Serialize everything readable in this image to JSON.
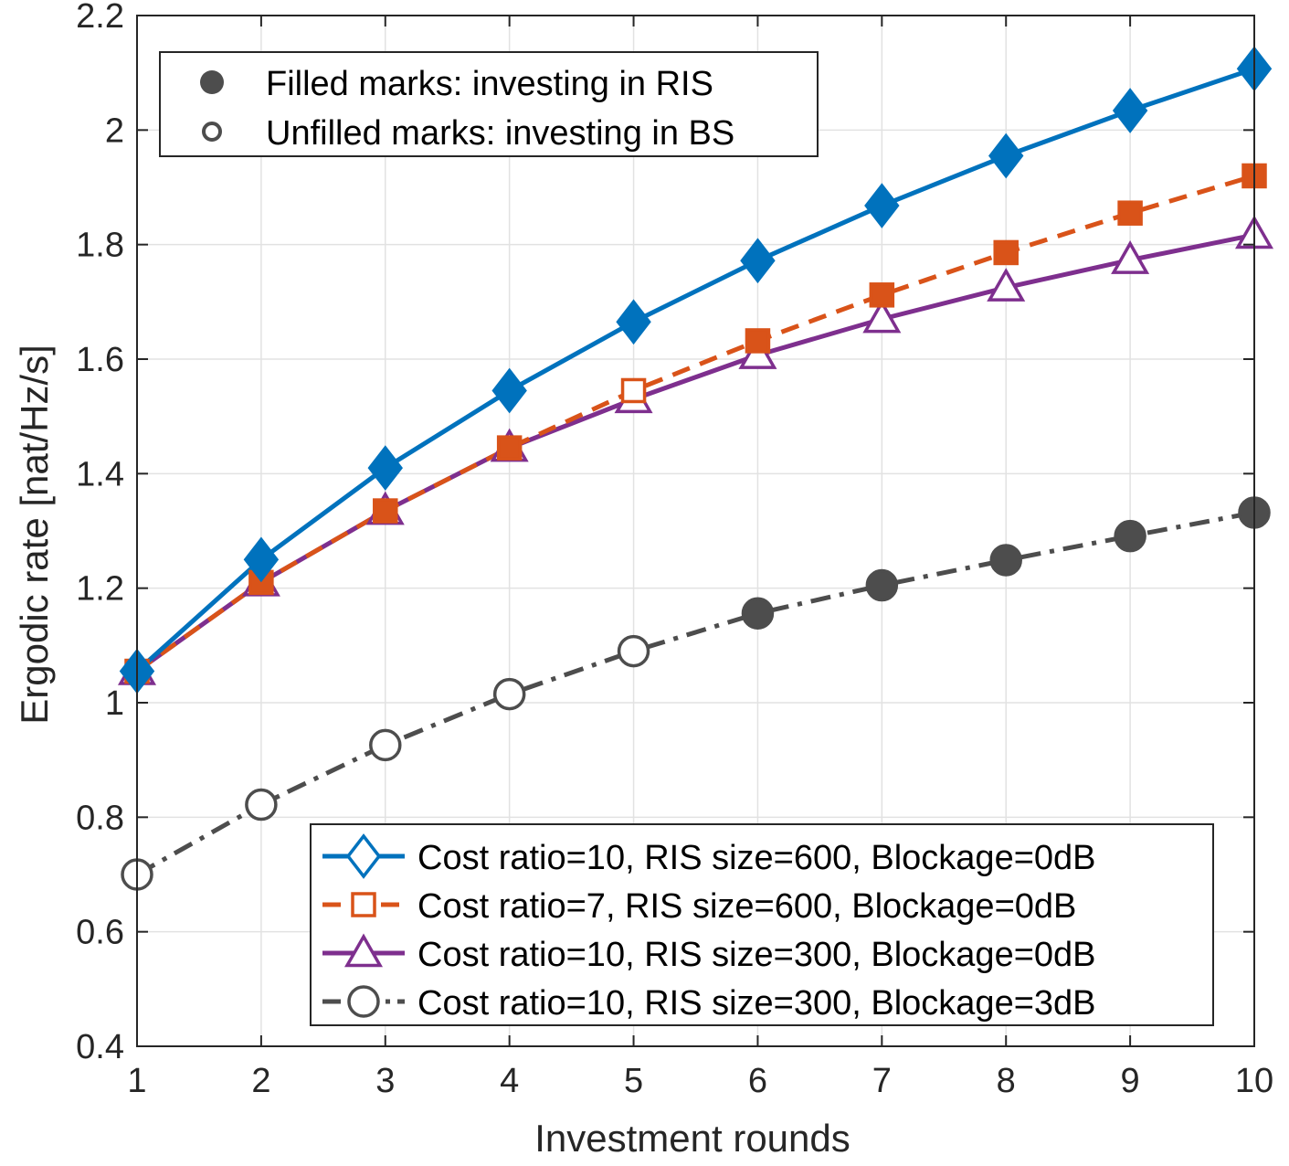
{
  "chart_data": {
    "type": "line",
    "title": "",
    "xlabel": "Investment rounds",
    "ylabel": "Ergodic rate [nat/Hz/s]",
    "xlim": [
      1,
      10
    ],
    "ylim": [
      0.4,
      2.2
    ],
    "grid": true,
    "x": [
      1,
      2,
      3,
      4,
      5,
      6,
      7,
      8,
      9,
      10
    ],
    "x_ticks": [
      "1",
      "2",
      "3",
      "4",
      "5",
      "6",
      "7",
      "8",
      "9",
      "10"
    ],
    "y_ticks": [
      {
        "v": 0.4,
        "label": "0.4"
      },
      {
        "v": 0.6,
        "label": "0.6"
      },
      {
        "v": 0.8,
        "label": "0.8"
      },
      {
        "v": 1.0,
        "label": "1"
      },
      {
        "v": 1.2,
        "label": "1.2"
      },
      {
        "v": 1.4,
        "label": "1.4"
      },
      {
        "v": 1.6,
        "label": "1.6"
      },
      {
        "v": 1.8,
        "label": "1.8"
      },
      {
        "v": 2.0,
        "label": "2"
      },
      {
        "v": 2.2,
        "label": "2.2"
      }
    ],
    "series": [
      {
        "name": "Cost ratio=10, RIS size=600, Blockage=0dB",
        "color": "#0072BD",
        "marker": "diamond",
        "linestyle": "solid",
        "values": [
          1.055,
          1.25,
          1.41,
          1.545,
          1.665,
          1.772,
          1.868,
          1.955,
          2.034,
          2.107
        ],
        "filled": [
          true,
          true,
          true,
          true,
          true,
          true,
          true,
          true,
          true,
          true
        ]
      },
      {
        "name": "Cost ratio=7, RIS size=600, Blockage=0dB",
        "color": "#D95319",
        "marker": "square",
        "linestyle": "dashed",
        "values": [
          1.055,
          1.21,
          1.335,
          1.445,
          1.545,
          1.632,
          1.712,
          1.786,
          1.855,
          1.92
        ],
        "filled": [
          true,
          true,
          true,
          true,
          false,
          true,
          true,
          true,
          true,
          true
        ]
      },
      {
        "name": "Cost ratio=10, RIS size=300, Blockage=0dB",
        "color": "#7E2F8E",
        "marker": "triangle",
        "linestyle": "solid",
        "values": [
          1.055,
          1.21,
          1.335,
          1.445,
          1.53,
          1.607,
          1.67,
          1.725,
          1.773,
          1.817
        ],
        "filled": [
          false,
          false,
          false,
          false,
          false,
          false,
          false,
          false,
          false,
          false
        ]
      },
      {
        "name": "Cost ratio=10, RIS size=300, Blockage=3dB",
        "color": "#4D4D4D",
        "marker": "circle",
        "linestyle": "dashdot",
        "values": [
          0.7,
          0.822,
          0.926,
          1.015,
          1.09,
          1.156,
          1.205,
          1.249,
          1.291,
          1.332
        ],
        "filled": [
          false,
          false,
          false,
          false,
          false,
          true,
          true,
          true,
          true,
          true
        ]
      }
    ],
    "marker_legend": [
      {
        "label": "Filled marks: investing in RIS",
        "filled": true
      },
      {
        "label": "Unfilled marks: investing in BS",
        "filled": false
      }
    ],
    "legend_position": "bottom-right",
    "marker_legend_position": "top-left"
  }
}
